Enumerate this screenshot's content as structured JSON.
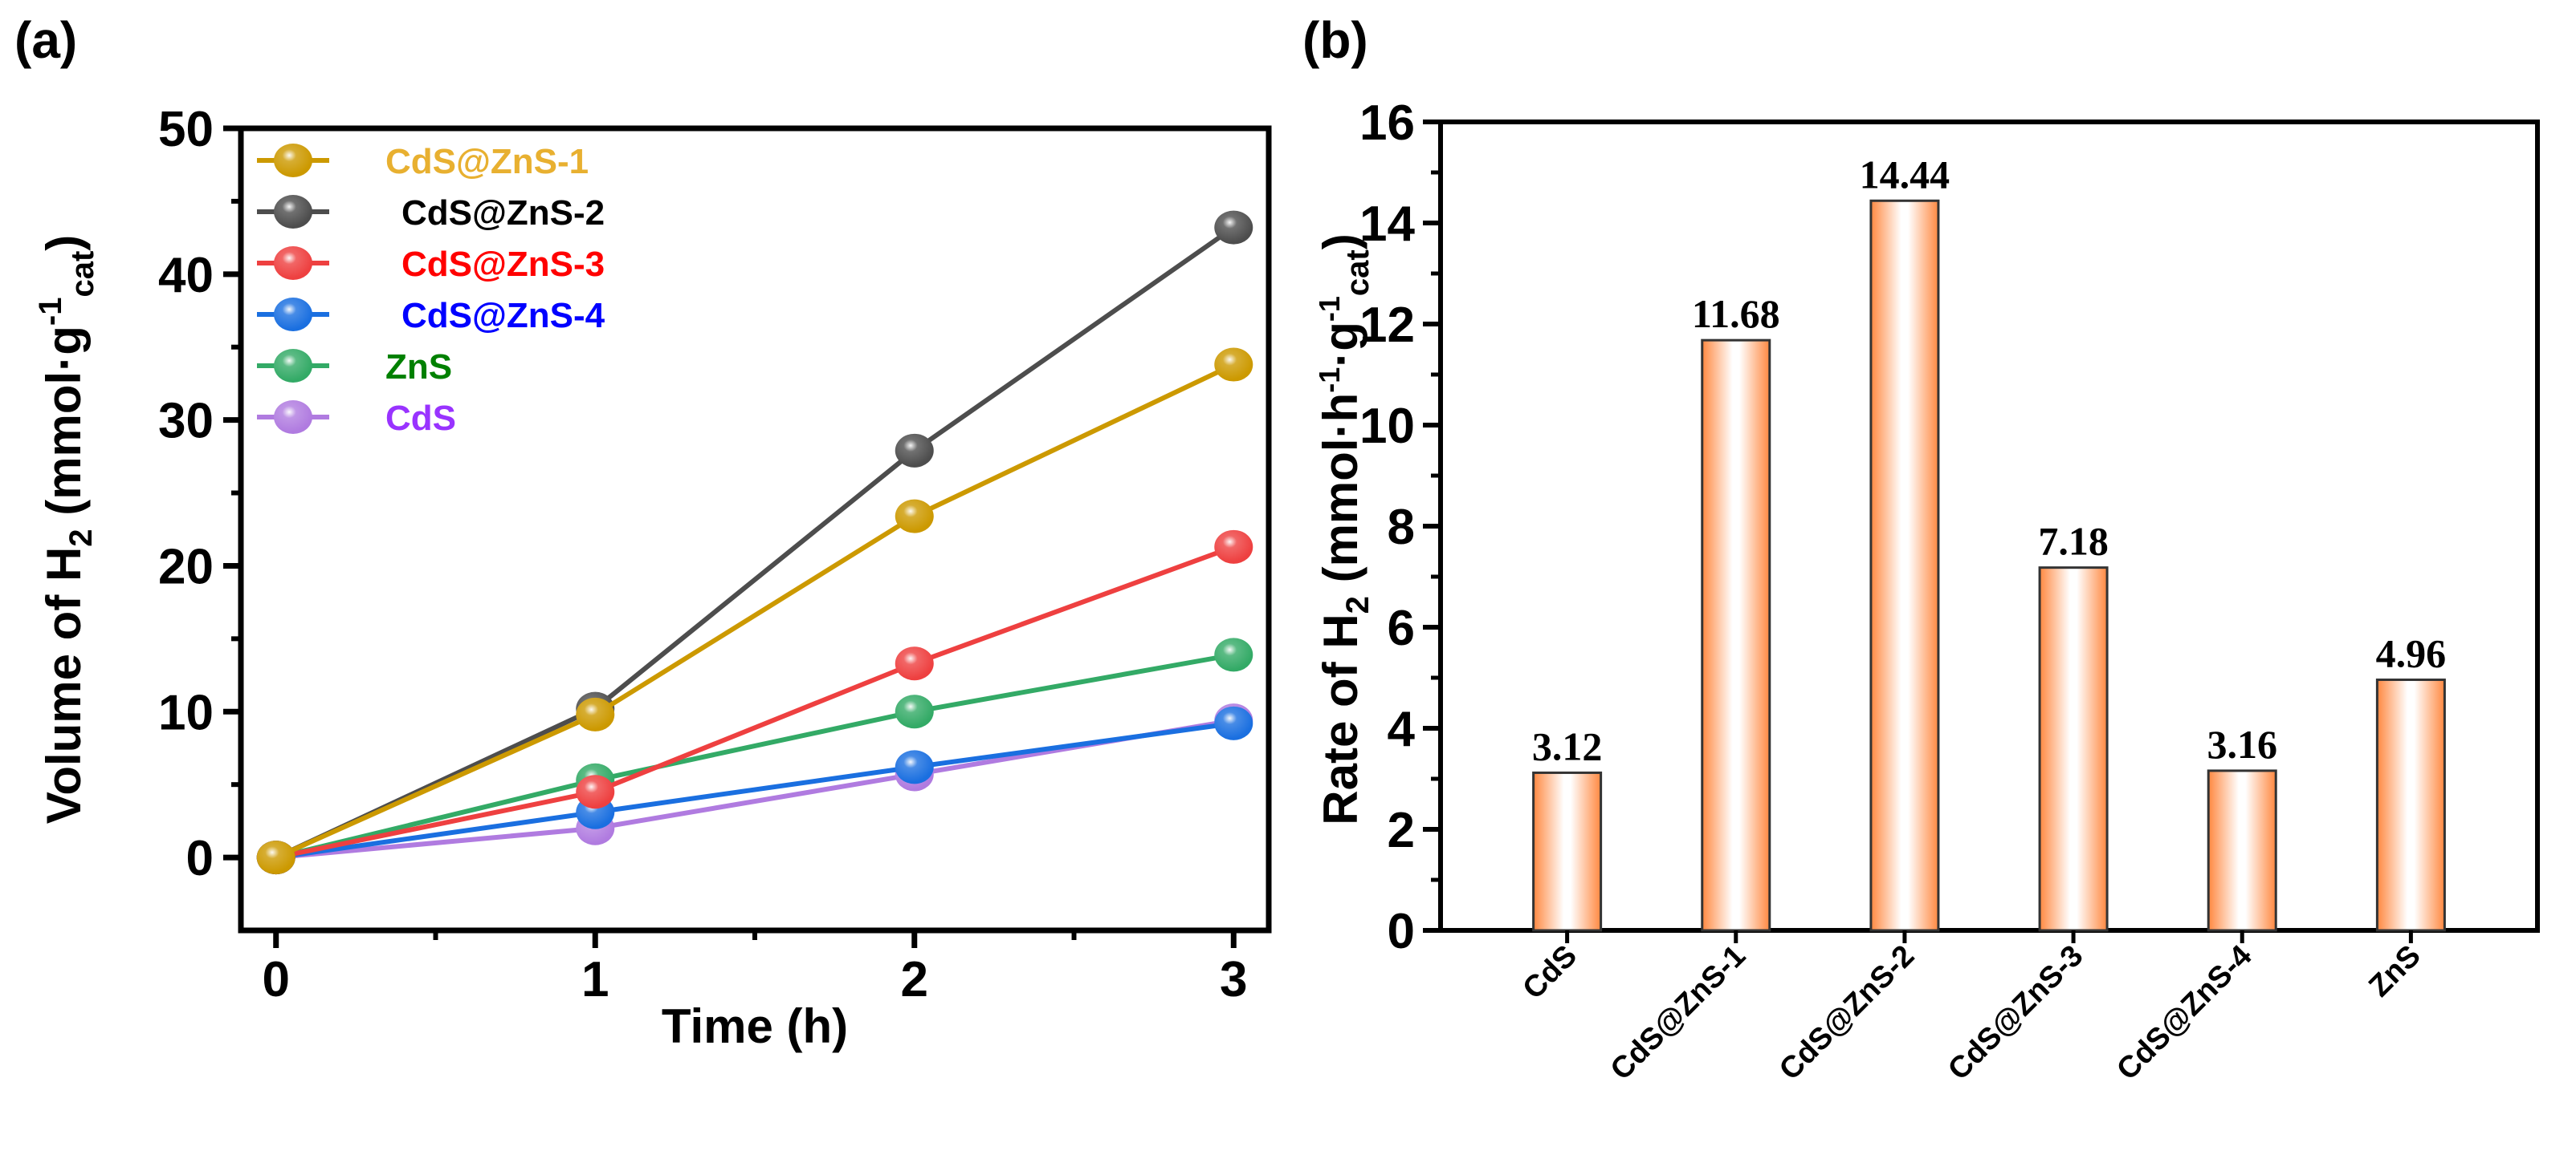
{
  "chart_data": [
    {
      "panel_label": "(a)",
      "type": "line",
      "xlabel": "Time (h)",
      "ylabel": "Volume of H2 (mmol·g-1cat)",
      "ylabel_parts": {
        "main": "Volume of H",
        "sub": "2",
        "unit_open": " (mmol·g",
        "sup": "-1",
        "unit_sub": "cat",
        "close": ")"
      },
      "x": [
        0,
        1,
        2,
        3
      ],
      "xlim": [
        -0.11,
        3.11
      ],
      "ylim": [
        -5,
        50
      ],
      "xticks": [
        "0",
        "1",
        "2",
        "3"
      ],
      "yticks": [
        "0",
        "10",
        "20",
        "30",
        "40",
        "50"
      ],
      "legend_position": "top-left",
      "series": [
        {
          "name": "CdS@ZnS-1",
          "values": [
            0,
            9.8,
            23.4,
            33.8
          ],
          "color": "#cc9900",
          "text_color": "#e8b030"
        },
        {
          "name": "CdS@ZnS-2",
          "values": [
            0,
            10.2,
            27.9,
            43.2
          ],
          "color": "#4d4d4d",
          "text_color": "#000000"
        },
        {
          "name": "CdS@ZnS-3",
          "values": [
            0,
            4.5,
            13.3,
            21.3
          ],
          "color": "#ee4040",
          "text_color": "#ff0000"
        },
        {
          "name": "CdS@ZnS-4",
          "values": [
            0,
            3.1,
            6.2,
            9.2
          ],
          "color": "#1a6fe0",
          "text_color": "#0000ff"
        },
        {
          "name": "ZnS",
          "values": [
            0,
            5.3,
            10.0,
            13.9
          ],
          "color": "#33aa66",
          "text_color": "#008000"
        },
        {
          "name": "CdS",
          "values": [
            0,
            2.0,
            5.7,
            9.4
          ],
          "color": "#b07be0",
          "text_color": "#9933ff"
        }
      ]
    },
    {
      "panel_label": "(b)",
      "type": "bar",
      "xlabel": "",
      "ylabel": "Rate of H2 (mmol·h-1·g-1cat)",
      "ylabel_parts": {
        "main": "Rate of H",
        "sub": "2",
        "p1": " (mmol·h",
        "sup1": "-1",
        "p2": "·g",
        "sup2": "-1",
        "unit_sub": "cat",
        "close": ")"
      },
      "categories": [
        "CdS",
        "CdS@ZnS-1",
        "CdS@ZnS-2",
        "CdS@ZnS-3",
        "CdS@ZnS-4",
        "ZnS"
      ],
      "values": [
        3.12,
        11.68,
        14.44,
        7.18,
        3.16,
        4.96
      ],
      "labels": [
        "3.12",
        "11.68",
        "14.44",
        "7.18",
        "3.16",
        "4.96"
      ],
      "ylim": [
        0,
        16
      ],
      "yticks": [
        "0",
        "2",
        "4",
        "6",
        "8",
        "10",
        "12",
        "14",
        "16"
      ],
      "bar_color": "#ff8840"
    }
  ]
}
